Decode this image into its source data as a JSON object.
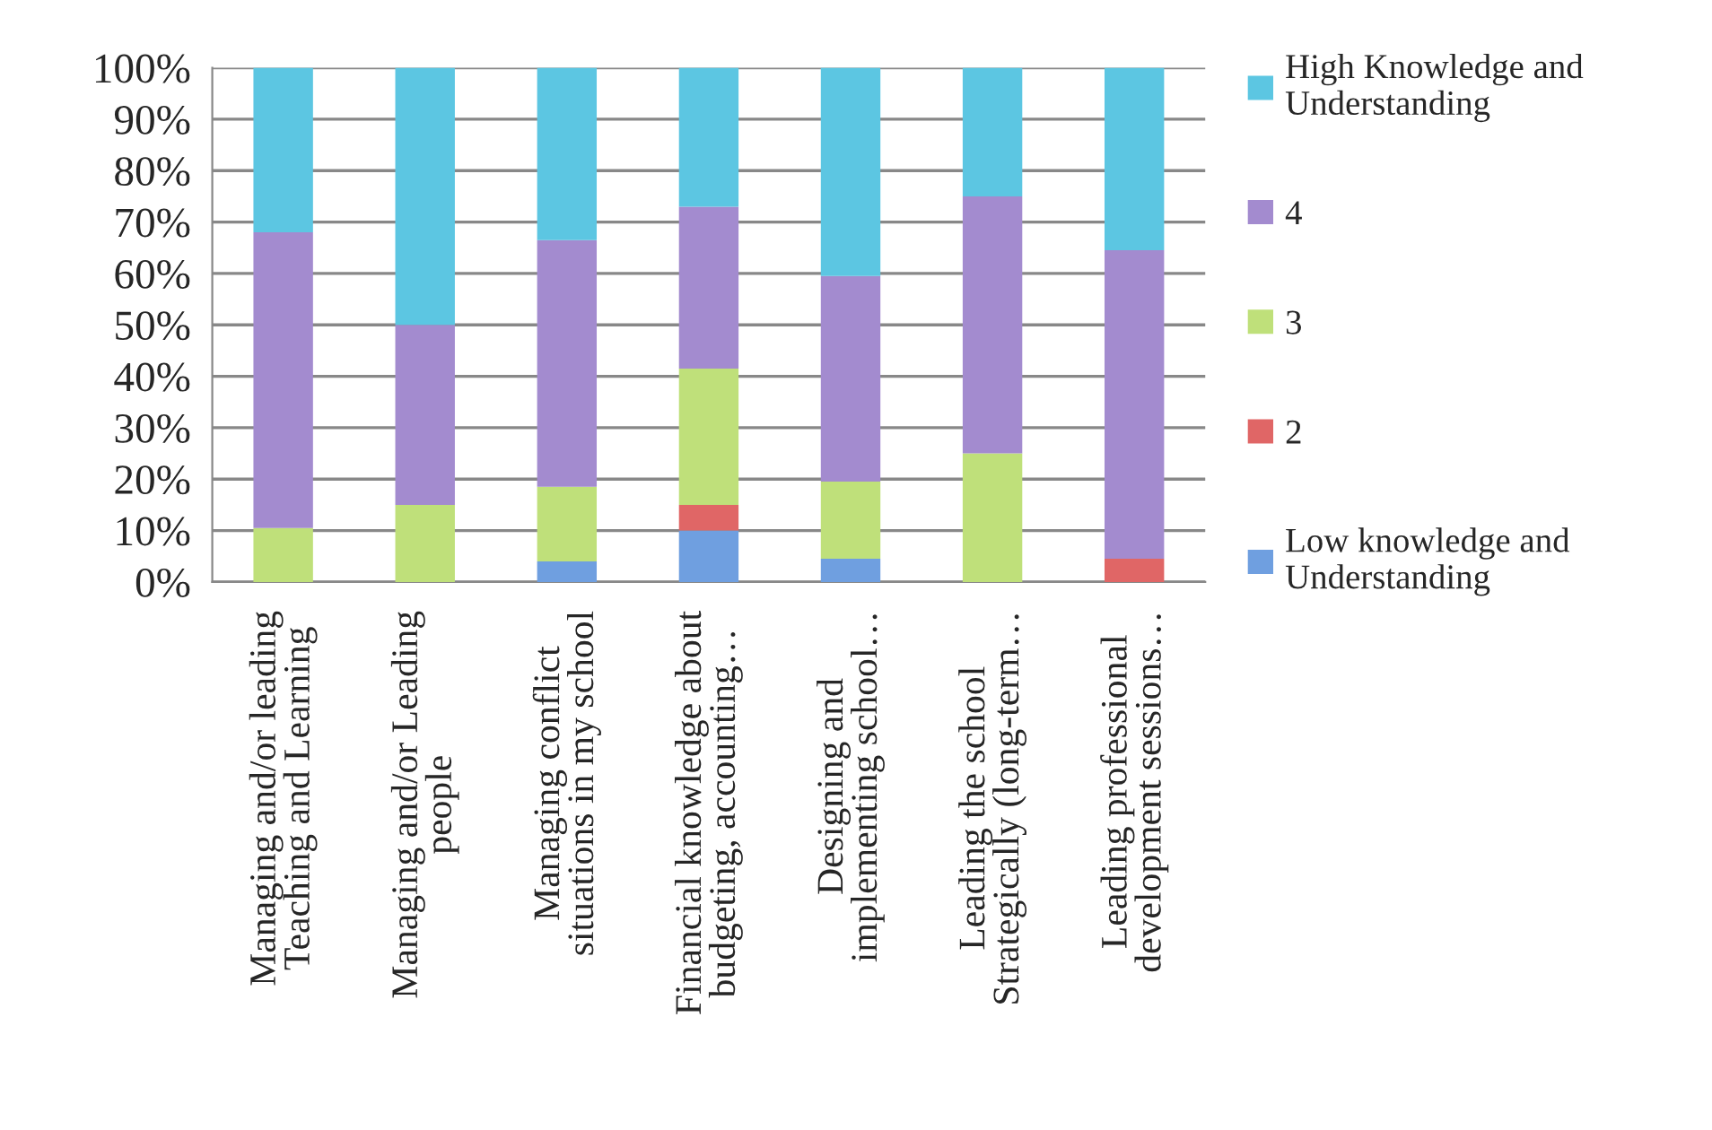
{
  "chart_data": {
    "type": "bar",
    "stacked": true,
    "categories": [
      "Managing and/or leading\nTeaching and Learning",
      "Managing and/or Leading\npeople",
      "Managing conflict\nsituations in my school",
      "Financial knowledge about\nbudgeting, accounting…",
      "Designing and\nimplementing school…",
      "Leading the school\nStrategically (long-term…",
      "Leading professional\ndevelopment sessions…"
    ],
    "series": [
      {
        "name": "Low knowledge and Understanding",
        "color": "#6f9fe0",
        "values": [
          0,
          0,
          4,
          10,
          4.5,
          0,
          0
        ]
      },
      {
        "name": "2",
        "color": "#e06666",
        "values": [
          0,
          0,
          0,
          5,
          0,
          0,
          4.5
        ]
      },
      {
        "name": "3",
        "color": "#bfe07a",
        "values": [
          10.5,
          15,
          14.5,
          26.5,
          15,
          25,
          0
        ]
      },
      {
        "name": "4",
        "color": "#a38bcf",
        "values": [
          57.5,
          35,
          48,
          31.5,
          40,
          50,
          60
        ]
      },
      {
        "name": "High Knowledge and Understanding",
        "color": "#5cc6e2",
        "values": [
          32,
          50,
          33.5,
          27,
          40.5,
          25,
          35.5
        ]
      }
    ],
    "ylim": [
      0,
      100
    ],
    "yticks": [
      {
        "value": 0,
        "label": "0%"
      },
      {
        "value": 10,
        "label": "10%"
      },
      {
        "value": 20,
        "label": "20%"
      },
      {
        "value": 30,
        "label": "30%"
      },
      {
        "value": 40,
        "label": "40%"
      },
      {
        "value": 50,
        "label": "50%"
      },
      {
        "value": 60,
        "label": "60%"
      },
      {
        "value": 70,
        "label": "70%"
      },
      {
        "value": 80,
        "label": "80%"
      },
      {
        "value": 90,
        "label": "90%"
      },
      {
        "value": 100,
        "label": "100%"
      }
    ],
    "grid": "y",
    "legend": "right"
  }
}
